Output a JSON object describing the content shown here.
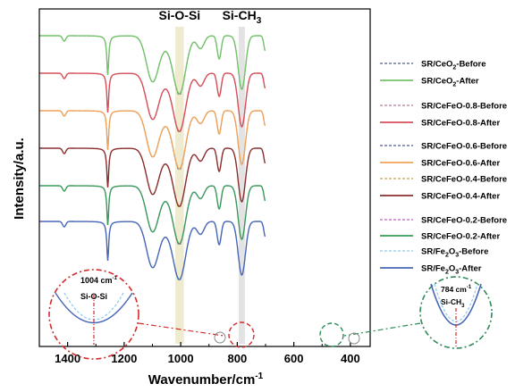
{
  "chart_data": {
    "type": "line",
    "title": "",
    "xlabel": "Wavenumber/cm",
    "xlabel_sup": "-1",
    "ylabel": "Intensity/a.u.",
    "xlim": [
      1500,
      330
    ],
    "x_reversed": true,
    "y_ticks_shown": false,
    "grid": false,
    "legend_position": "right",
    "x_ticks": [
      1400,
      1200,
      1000,
      800,
      600,
      400
    ],
    "x_tick_labels": [
      "1400",
      "1200",
      "1000",
      "800",
      "600",
      "400"
    ],
    "bands": [
      {
        "label": "Si-O-Si",
        "center": 1004,
        "width": 30,
        "color": "#eae6c4"
      },
      {
        "label": "Si-CH",
        "label_sub": "3",
        "center": 784,
        "width": 22,
        "color": "#dcdcdc"
      }
    ],
    "peaks_cm": [
      1412,
      1258,
      1100,
      1004,
      930,
      864,
      784,
      700
    ],
    "series": [
      {
        "name": "SR/CeO",
        "sub": "2",
        "suffix": "-Before",
        "color": "#4f5f86",
        "dash": true,
        "offset": 6
      },
      {
        "name": "SR/CeO",
        "sub": "2",
        "suffix": "-After",
        "color": "#74c36a",
        "dash": false,
        "offset": 6
      },
      {
        "name": "SR/CeFeO-0.8-Before",
        "color": "#b77a9a",
        "dash": true,
        "offset": 5
      },
      {
        "name": "SR/CeFeO-0.8-After",
        "color": "#d64f59",
        "dash": false,
        "offset": 5
      },
      {
        "name": "SR/CeFeO-0.6-Before",
        "color": "#4a5a9c",
        "dash": true,
        "offset": 4
      },
      {
        "name": "SR/CeFeO-0.6-After",
        "color": "#f0a258",
        "dash": false,
        "offset": 4
      },
      {
        "name": "SR/CeFeO-0.4-Before",
        "color": "#c8a14a",
        "dash": true,
        "offset": 3
      },
      {
        "name": "SR/CeFeO-0.4-After",
        "color": "#8b2e30",
        "dash": false,
        "offset": 3
      },
      {
        "name": "SR/CeFeO-0.2-Before",
        "color": "#c45cc6",
        "dash": true,
        "offset": 2
      },
      {
        "name": "SR/CeFeO-0.2-After",
        "color": "#3a9a5a",
        "dash": false,
        "offset": 2
      },
      {
        "name": "SR/Fe",
        "sub": "2",
        "sub_text": "O",
        "sub2": "3",
        "suffix": "-Before",
        "color": "#8ec9ee",
        "dash": true,
        "offset": 1
      },
      {
        "name": "SR/Fe",
        "sub": "2",
        "sub_text": "O",
        "sub2": "3",
        "suffix": "-After",
        "color": "#4866b6",
        "dash": false,
        "offset": 1
      }
    ],
    "insets": [
      {
        "label_value": "1004 cm",
        "label_sup": "-1",
        "label_name": "Si-O-Si",
        "color": "#d42a2a"
      },
      {
        "label_value": "784 cm",
        "label_sup": "-1",
        "label_name": "Si-CH",
        "label_sub": "3",
        "color": "#2e8b57"
      }
    ]
  }
}
